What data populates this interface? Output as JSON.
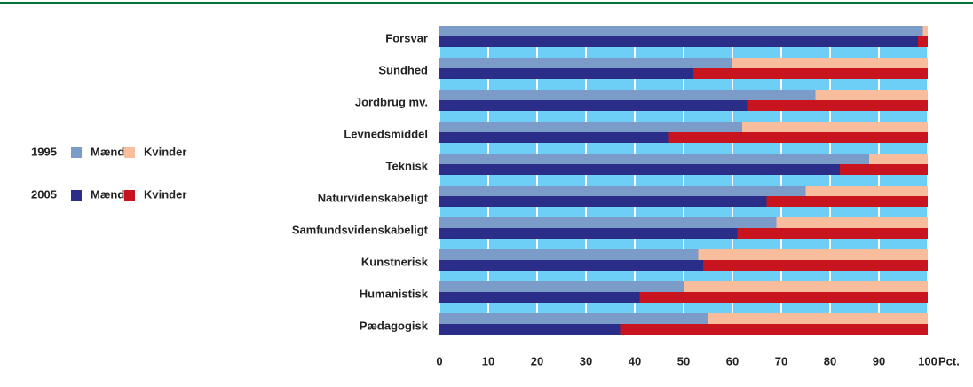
{
  "chart_data": {
    "type": "grouped_stacked_barh",
    "categories": [
      "Forsvar",
      "Sundhed",
      "Jordbrug mv.",
      "Levnedsmiddel",
      "Teknisk",
      "Naturvidenskabeligt",
      "Samfundsvidenskabeligt",
      "Kunstnerisk",
      "Humanistisk",
      "Pædagogisk"
    ],
    "groups": [
      {
        "name": "1995",
        "series": [
          {
            "name": "Mænd",
            "color": "#7b9bc9",
            "values": [
              99,
              60,
              77,
              62,
              88,
              75,
              69,
              53,
              50,
              55
            ]
          },
          {
            "name": "Kvinder",
            "color": "#f8bd9c",
            "values": [
              1,
              40,
              23,
              38,
              12,
              25,
              31,
              47,
              50,
              45
            ]
          }
        ]
      },
      {
        "name": "2005",
        "series": [
          {
            "name": "Mænd",
            "color": "#2b2e88",
            "values": [
              98,
              52,
              63,
              47,
              82,
              67,
              61,
              54,
              41,
              37
            ]
          },
          {
            "name": "Kvinder",
            "color": "#c8141e",
            "values": [
              2,
              48,
              37,
              53,
              18,
              33,
              39,
              46,
              59,
              63
            ]
          }
        ]
      }
    ],
    "xlim": [
      0,
      100
    ],
    "xticks": [
      0,
      10,
      20,
      30,
      40,
      50,
      60,
      70,
      80,
      90,
      100
    ],
    "x_unit": "Pct.",
    "grid": true
  }
}
